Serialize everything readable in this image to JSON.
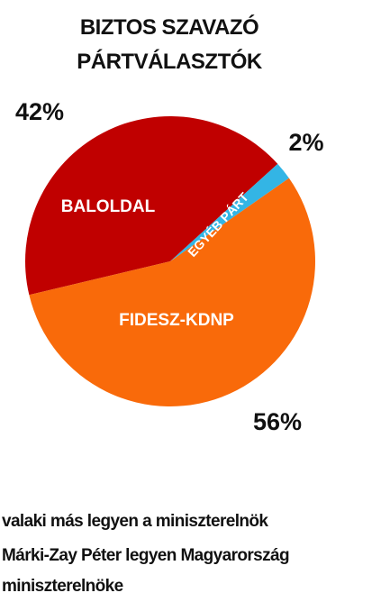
{
  "chart_data": {
    "type": "pie",
    "title": "BIZTOS SZAVAZÓ PÁRTVÁLASZTÓK",
    "categories": [
      "BALOLDAL",
      "EGYÉB PÁRT",
      "FIDESZ-KDNP"
    ],
    "values": [
      42,
      2,
      56
    ],
    "value_labels": [
      "42%",
      "2%",
      "56%"
    ],
    "colors": [
      "#c00000",
      "#33b5e5",
      "#f96a0a"
    ],
    "legend": [
      "valaki más legyen a miniszterelnök",
      "Márki-Zay Péter legyen Magyarország miniszterelnöke"
    ]
  }
}
